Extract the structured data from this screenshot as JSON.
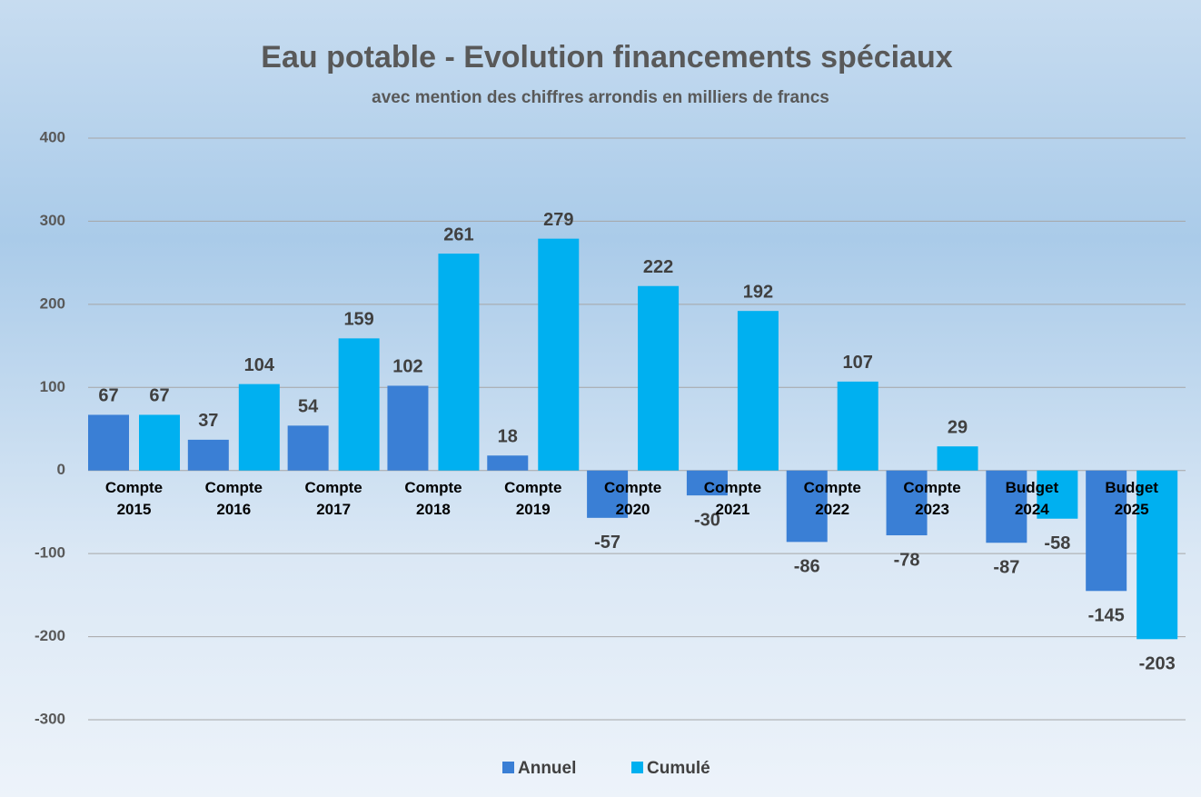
{
  "chart_data": {
    "type": "bar",
    "title": "Eau potable - Evolution financements spéciaux",
    "subtitle": "avec mention des chiffres arrondis en milliers de francs",
    "categories": [
      "Compte 2015",
      "Compte 2016",
      "Compte 2017",
      "Compte 2018",
      "Compte 2019",
      "Compte 2020",
      "Compte 2021",
      "Compte 2022",
      "Compte 2023",
      "Budget 2024",
      "Budget 2025"
    ],
    "series": [
      {
        "name": "Annuel",
        "color": "#3a7fd5",
        "values": [
          67,
          37,
          54,
          102,
          18,
          -57,
          -30,
          -86,
          -78,
          -87,
          -145
        ]
      },
      {
        "name": "Cumulé",
        "color": "#00b0f0",
        "values": [
          67,
          104,
          159,
          261,
          279,
          222,
          192,
          107,
          29,
          -58,
          -203
        ]
      }
    ],
    "ylim": [
      -300,
      400
    ],
    "yticks": [
      -300,
      -200,
      -100,
      0,
      100,
      200,
      300,
      400
    ],
    "grid": true,
    "legend": "bottom"
  }
}
